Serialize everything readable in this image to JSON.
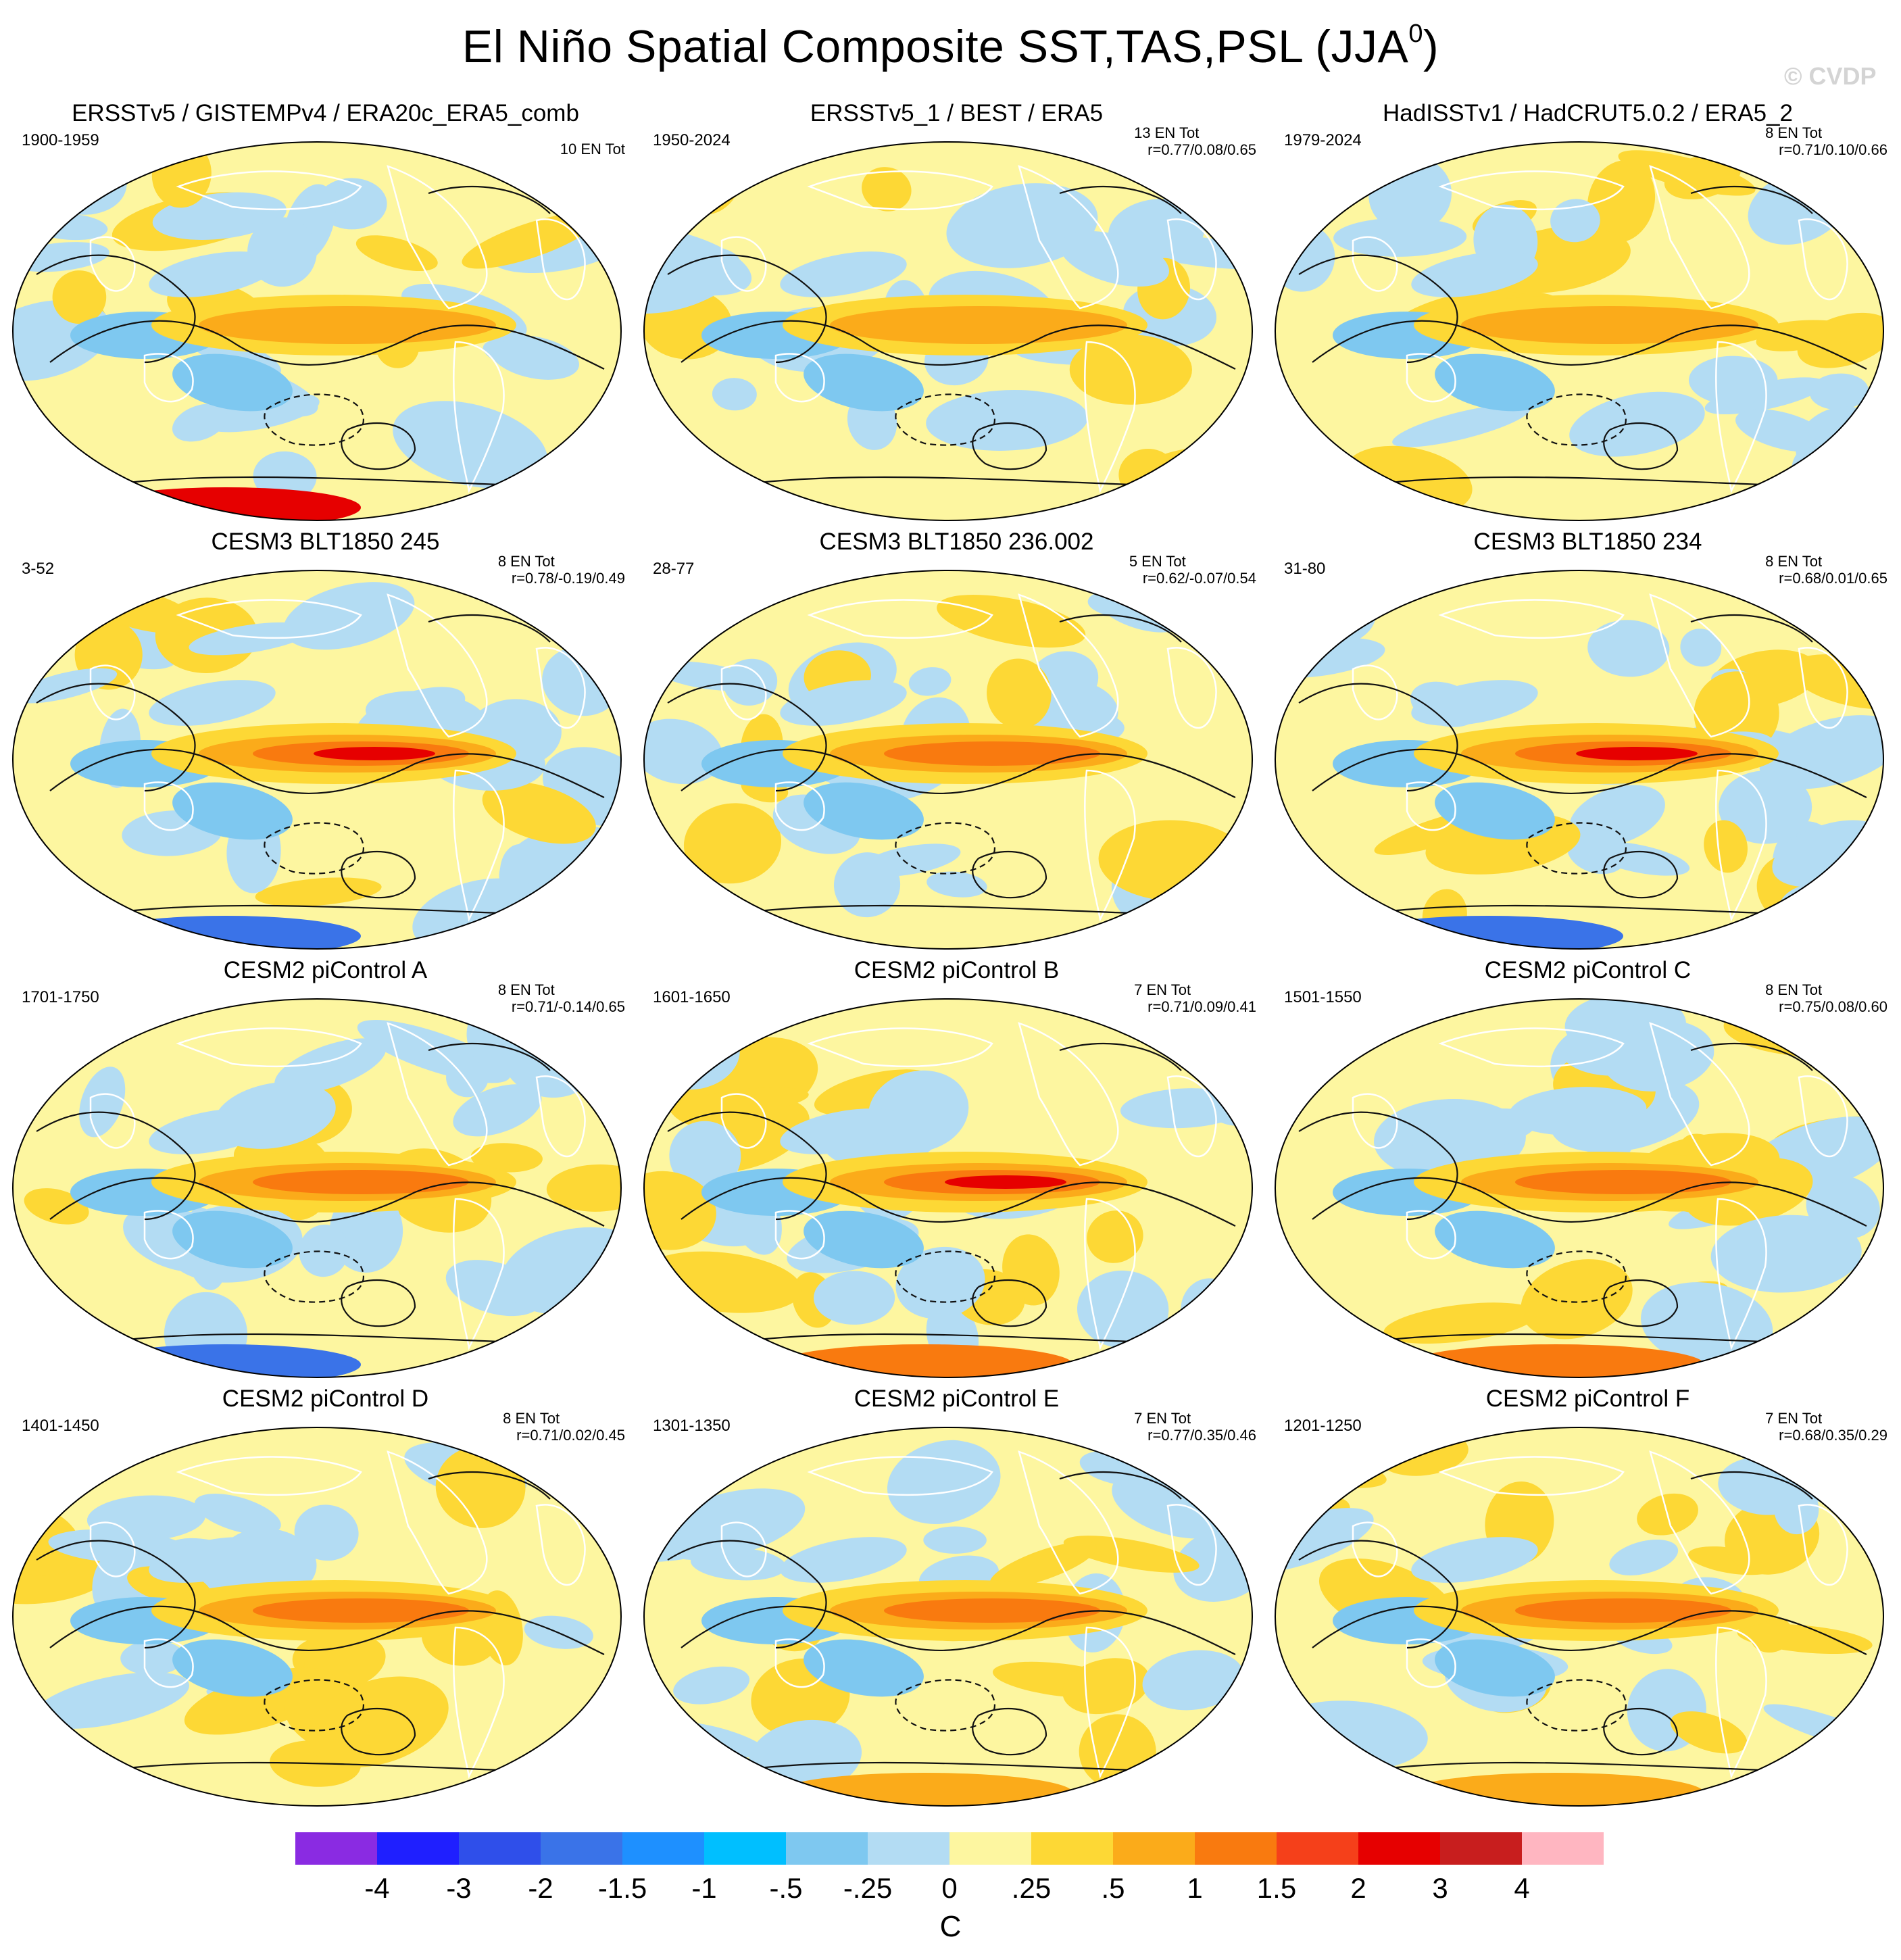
{
  "title_main": "El Niño Spatial Composite SST,TAS,PSL (JJA",
  "title_sup": "0",
  "title_end": ")",
  "watermark": "© CVDP",
  "panels": [
    {
      "title": "ERSSTv5 / GISTEMPv4 / ERA20c_ERA5_comb",
      "years": "1900-1959",
      "en": "10 EN Tot",
      "r": ""
    },
    {
      "title": "ERSSTv5_1 / BEST / ERA5",
      "years": "1950-2024",
      "en": "13 EN Tot",
      "r": "r=0.77/0.08/0.65"
    },
    {
      "title": "HadISSTv1 / HadCRUT5.0.2 / ERA5_2",
      "years": "1979-2024",
      "en": "8 EN Tot",
      "r": "r=0.71/0.10/0.66"
    },
    {
      "title": "CESM3 BLT1850 245",
      "years": "3-52",
      "en": "8 EN Tot",
      "r": "r=0.78/-0.19/0.49"
    },
    {
      "title": "CESM3 BLT1850 236.002",
      "years": "28-77",
      "en": "5 EN Tot",
      "r": "r=0.62/-0.07/0.54"
    },
    {
      "title": "CESM3 BLT1850 234",
      "years": "31-80",
      "en": "8 EN Tot",
      "r": "r=0.68/0.01/0.65"
    },
    {
      "title": "CESM2 piControl A",
      "years": "1701-1750",
      "en": "8 EN Tot",
      "r": "r=0.71/-0.14/0.65"
    },
    {
      "title": "CESM2 piControl B",
      "years": "1601-1650",
      "en": "7 EN Tot",
      "r": "r=0.71/0.09/0.41"
    },
    {
      "title": "CESM2 piControl C",
      "years": "1501-1550",
      "en": "8 EN Tot",
      "r": "r=0.75/0.08/0.60"
    },
    {
      "title": "CESM2 piControl D",
      "years": "1401-1450",
      "en": "8 EN Tot",
      "r": "r=0.71/0.02/0.45"
    },
    {
      "title": "CESM2 piControl E",
      "years": "1301-1350",
      "en": "7 EN Tot",
      "r": "r=0.77/0.35/0.46"
    },
    {
      "title": "CESM2 piControl F",
      "years": "1201-1250",
      "en": "7 EN Tot",
      "r": "r=0.68/0.35/0.29"
    }
  ],
  "colorbar": {
    "colors": [
      "#8a2be2",
      "#1f1fff",
      "#2f4fea",
      "#3a73e8",
      "#1e90ff",
      "#00bfff",
      "#7ec8f0",
      "#b3dcf3",
      "#fdf6a0",
      "#fdd835",
      "#fbab1a",
      "#f97a0f",
      "#f5401a",
      "#e60000",
      "#c81e1e",
      "#ffb6c1"
    ],
    "labels": [
      "-4",
      "-3",
      "-2",
      "-1.5",
      "-1",
      "-.5",
      "-.25",
      "0",
      ".25",
      ".5",
      "1",
      "1.5",
      "2",
      "3",
      "4"
    ],
    "unit": "C"
  },
  "map_colors": {
    "pos1": "#fdf6a0",
    "neg1": "#b3dcf3",
    "pos2": "#fdd835",
    "pos3": "#fbab1a",
    "pos4": "#f97a0f",
    "pos5": "#e60000",
    "neg2": "#7ec8f0",
    "neg3": "#3a73e8",
    "land_outline": "#ffffff",
    "contour": "#111111"
  }
}
